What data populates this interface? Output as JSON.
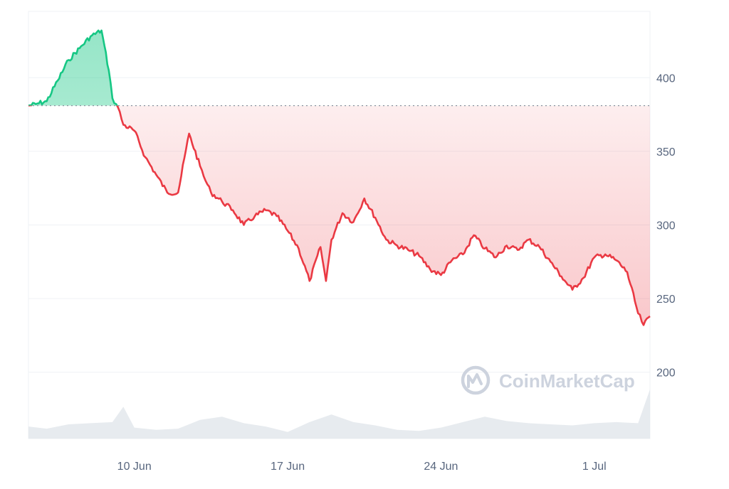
{
  "watermark": {
    "text": "CoinMarketCap",
    "icon": "coinmarketcap-logo-icon"
  },
  "colors": {
    "up_line": "#16c784",
    "up_fill": "#16c784",
    "down_line": "#ea3943",
    "down_fill": "#ea3943",
    "baseline": "#8a939f",
    "grid": "#eff2f5",
    "volume": "#dfe4ea",
    "tick_text": "#58667e"
  },
  "chart_data": {
    "type": "area",
    "y_axis": {
      "position": "right",
      "ticks": [
        200,
        250,
        300,
        350,
        400
      ],
      "range": [
        155,
        445
      ]
    },
    "x_axis": {
      "ticks": [
        "10 Jun",
        "17 Jun",
        "24 Jun",
        "1 Jul"
      ],
      "tick_dates": [
        "2024-06-10",
        "2024-06-17",
        "2024-06-24",
        "2024-07-01"
      ],
      "range": [
        "2024-06-05T04:00",
        "2024-07-03T13:00"
      ]
    },
    "baseline_value": 381,
    "grid": true,
    "series": [
      {
        "x": [
          "2024-06-05T04:00",
          "2024-06-05T12:00",
          "2024-06-06T00:00",
          "2024-06-06T12:00",
          "2024-06-07T00:00",
          "2024-06-07T12:00",
          "2024-06-08T00:00",
          "2024-06-08T12:00",
          "2024-06-08T20:00",
          "2024-06-09T00:00",
          "2024-06-09T06:00",
          "2024-06-09T12:00",
          "2024-06-10T00:00",
          "2024-06-10T12:00",
          "2024-06-11T00:00",
          "2024-06-11T12:00",
          "2024-06-12T00:00",
          "2024-06-12T12:00",
          "2024-06-13T00:00",
          "2024-06-13T06:00",
          "2024-06-13T12:00",
          "2024-06-14T00:00",
          "2024-06-14T12:00",
          "2024-06-15T00:00",
          "2024-06-15T12:00",
          "2024-06-16T00:00",
          "2024-06-16T12:00",
          "2024-06-17T00:00",
          "2024-06-17T12:00",
          "2024-06-18T00:00",
          "2024-06-18T12:00",
          "2024-06-18T18:00",
          "2024-06-19T00:00",
          "2024-06-19T12:00",
          "2024-06-20T00:00",
          "2024-06-20T12:00",
          "2024-06-21T00:00",
          "2024-06-21T12:00",
          "2024-06-22T00:00",
          "2024-06-22T12:00",
          "2024-06-23T00:00",
          "2024-06-23T12:00",
          "2024-06-24T00:00",
          "2024-06-24T12:00",
          "2024-06-25T00:00",
          "2024-06-25T12:00",
          "2024-06-26T00:00",
          "2024-06-26T12:00",
          "2024-06-27T00:00",
          "2024-06-27T12:00",
          "2024-06-28T00:00",
          "2024-06-28T12:00",
          "2024-06-29T00:00",
          "2024-06-29T12:00",
          "2024-06-30T00:00",
          "2024-06-30T12:00",
          "2024-07-01T00:00",
          "2024-07-01T12:00",
          "2024-07-02T00:00",
          "2024-07-02T12:00",
          "2024-07-03T00:00",
          "2024-07-03T06:00",
          "2024-07-03T13:00"
        ],
        "values": [
          381,
          382,
          384,
          398,
          412,
          420,
          428,
          432,
          405,
          386,
          380,
          368,
          364,
          346,
          334,
          322,
          322,
          362,
          340,
          330,
          322,
          316,
          310,
          300,
          306,
          310,
          306,
          296,
          284,
          262,
          285,
          262,
          290,
          308,
          302,
          318,
          305,
          290,
          286,
          283,
          279,
          270,
          266,
          276,
          280,
          293,
          284,
          278,
          286,
          283,
          290,
          285,
          275,
          265,
          256,
          264,
          278,
          280,
          276,
          268,
          240,
          232,
          238
        ]
      }
    ],
    "volume": {
      "x": [
        "2024-06-05T04:00",
        "2024-06-06T00:00",
        "2024-06-07T00:00",
        "2024-06-08T00:00",
        "2024-06-09T00:00",
        "2024-06-09T12:00",
        "2024-06-10T00:00",
        "2024-06-11T00:00",
        "2024-06-12T00:00",
        "2024-06-13T00:00",
        "2024-06-14T00:00",
        "2024-06-15T00:00",
        "2024-06-16T00:00",
        "2024-06-17T00:00",
        "2024-06-18T00:00",
        "2024-06-19T00:00",
        "2024-06-20T00:00",
        "2024-06-21T00:00",
        "2024-06-22T00:00",
        "2024-06-23T00:00",
        "2024-06-24T00:00",
        "2024-06-25T00:00",
        "2024-06-26T00:00",
        "2024-06-27T00:00",
        "2024-06-28T00:00",
        "2024-06-29T00:00",
        "2024-06-30T00:00",
        "2024-07-01T00:00",
        "2024-07-02T00:00",
        "2024-07-03T00:00",
        "2024-07-03T13:00"
      ],
      "values": [
        0.22,
        0.18,
        0.26,
        0.28,
        0.3,
        0.58,
        0.2,
        0.16,
        0.18,
        0.34,
        0.4,
        0.28,
        0.22,
        0.12,
        0.3,
        0.44,
        0.3,
        0.24,
        0.16,
        0.14,
        0.2,
        0.3,
        0.4,
        0.32,
        0.28,
        0.26,
        0.24,
        0.28,
        0.3,
        0.28,
        0.9
      ]
    }
  }
}
